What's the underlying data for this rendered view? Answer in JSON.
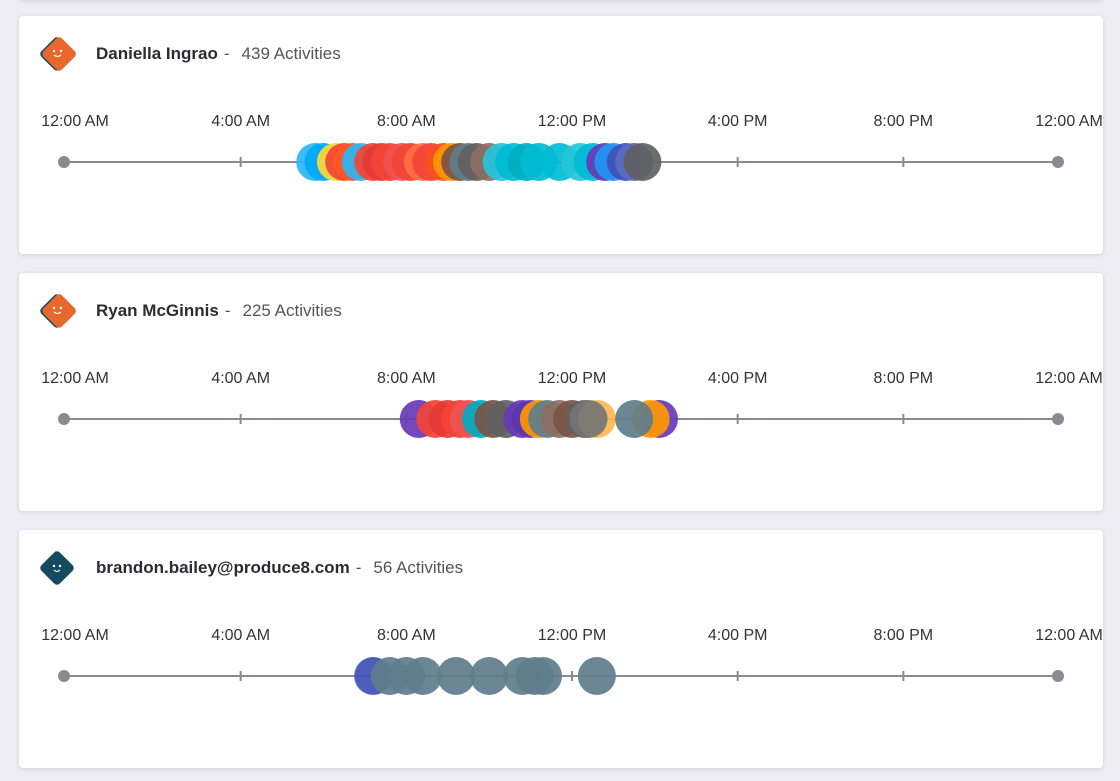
{
  "time_labels": [
    "12:00 AM",
    "4:00 AM",
    "8:00 AM",
    "12:00 PM",
    "4:00 PM",
    "8:00 PM",
    "12:00 AM"
  ],
  "colors": {
    "axis": "#8a8a93",
    "avatar_orange": "#e8672c",
    "avatar_navy": "#164a5e"
  },
  "users": [
    {
      "name": "Daniella Ingrao",
      "separator": "-",
      "activities": "439 Activities",
      "avatar": "orange",
      "dots": [
        {
          "h": 5.8,
          "c": "#29b6f6"
        },
        {
          "h": 6.0,
          "c": "#03a9f4"
        },
        {
          "h": 6.3,
          "c": "#fdd835"
        },
        {
          "h": 6.5,
          "c": "#f44336"
        },
        {
          "h": 6.7,
          "c": "#ff5722"
        },
        {
          "h": 6.9,
          "c": "#29b6f6"
        },
        {
          "h": 7.2,
          "c": "#f44336"
        },
        {
          "h": 7.4,
          "c": "#e53935"
        },
        {
          "h": 7.6,
          "c": "#f44336"
        },
        {
          "h": 7.9,
          "c": "#ef5350"
        },
        {
          "h": 8.1,
          "c": "#f44336"
        },
        {
          "h": 8.4,
          "c": "#ff7043"
        },
        {
          "h": 8.6,
          "c": "#f44336"
        },
        {
          "h": 8.9,
          "c": "#f4511e"
        },
        {
          "h": 9.1,
          "c": "#ff9800"
        },
        {
          "h": 9.3,
          "c": "#795548"
        },
        {
          "h": 9.5,
          "c": "#607d8b"
        },
        {
          "h": 9.7,
          "c": "#616161"
        },
        {
          "h": 10.0,
          "c": "#8d6e63"
        },
        {
          "h": 10.3,
          "c": "#26c6da"
        },
        {
          "h": 10.6,
          "c": "#00bcd4"
        },
        {
          "h": 10.9,
          "c": "#00acc1"
        },
        {
          "h": 11.2,
          "c": "#00bcd4"
        },
        {
          "h": 11.7,
          "c": "#00bcd4"
        },
        {
          "h": 12.2,
          "c": "#26c6da"
        },
        {
          "h": 12.5,
          "c": "#00bcd4"
        },
        {
          "h": 12.8,
          "c": "#673ab7"
        },
        {
          "h": 13.0,
          "c": "#2196f3"
        },
        {
          "h": 13.3,
          "c": "#3f51b5"
        },
        {
          "h": 13.5,
          "c": "#5c6bc0"
        },
        {
          "h": 13.7,
          "c": "#616161"
        }
      ]
    },
    {
      "name": "Ryan McGinnis",
      "separator": "-",
      "activities": "225 Activities",
      "avatar": "orange",
      "dots": [
        {
          "h": 8.3,
          "c": "#673ab7"
        },
        {
          "h": 8.7,
          "c": "#f44336"
        },
        {
          "h": 9.0,
          "c": "#e53935"
        },
        {
          "h": 9.3,
          "c": "#f44336"
        },
        {
          "h": 9.5,
          "c": "#ef5350"
        },
        {
          "h": 9.8,
          "c": "#00acc1"
        },
        {
          "h": 10.1,
          "c": "#795548"
        },
        {
          "h": 10.4,
          "c": "#616161"
        },
        {
          "h": 10.8,
          "c": "#673ab7"
        },
        {
          "h": 11.0,
          "c": "#5e35b1"
        },
        {
          "h": 11.2,
          "c": "#ff9800"
        },
        {
          "h": 11.4,
          "c": "#607d8b"
        },
        {
          "h": 11.7,
          "c": "#8d6e63"
        },
        {
          "h": 12.0,
          "c": "#795548"
        },
        {
          "h": 12.3,
          "c": "#616161"
        },
        {
          "h": 12.6,
          "c": "#ffb74d"
        },
        {
          "h": 12.4,
          "c": "#757575"
        },
        {
          "h": 14.1,
          "c": "#673ab7"
        },
        {
          "h": 13.9,
          "c": "#ff9800"
        },
        {
          "h": 13.5,
          "c": "#607d8b"
        }
      ]
    },
    {
      "name": "brandon.bailey@produce8.com",
      "separator": "-",
      "activities": "56 Activities",
      "avatar": "navy",
      "dots": [
        {
          "h": 7.2,
          "c": "#3f51b5"
        },
        {
          "h": 7.6,
          "c": "#607d8b"
        },
        {
          "h": 8.0,
          "c": "#607d8b"
        },
        {
          "h": 8.4,
          "c": "#607d8b"
        },
        {
          "h": 9.2,
          "c": "#607d8b"
        },
        {
          "h": 10.0,
          "c": "#607d8b"
        },
        {
          "h": 10.8,
          "c": "#607d8b"
        },
        {
          "h": 11.1,
          "c": "#607d8b"
        },
        {
          "h": 11.3,
          "c": "#607d8b"
        },
        {
          "h": 12.6,
          "c": "#607d8b"
        }
      ]
    }
  ]
}
